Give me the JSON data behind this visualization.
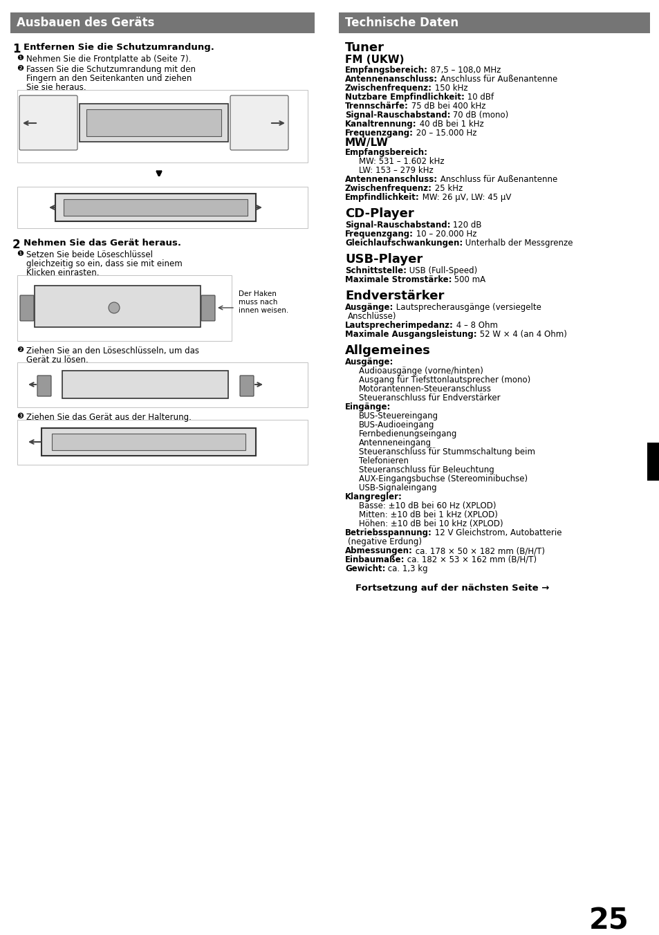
{
  "page_bg": "#ffffff",
  "header_bg": "#757575",
  "header_text_color": "#ffffff",
  "left_header": "Ausbauen des Geräts",
  "right_header": "Technische Daten",
  "page_number": "25"
}
